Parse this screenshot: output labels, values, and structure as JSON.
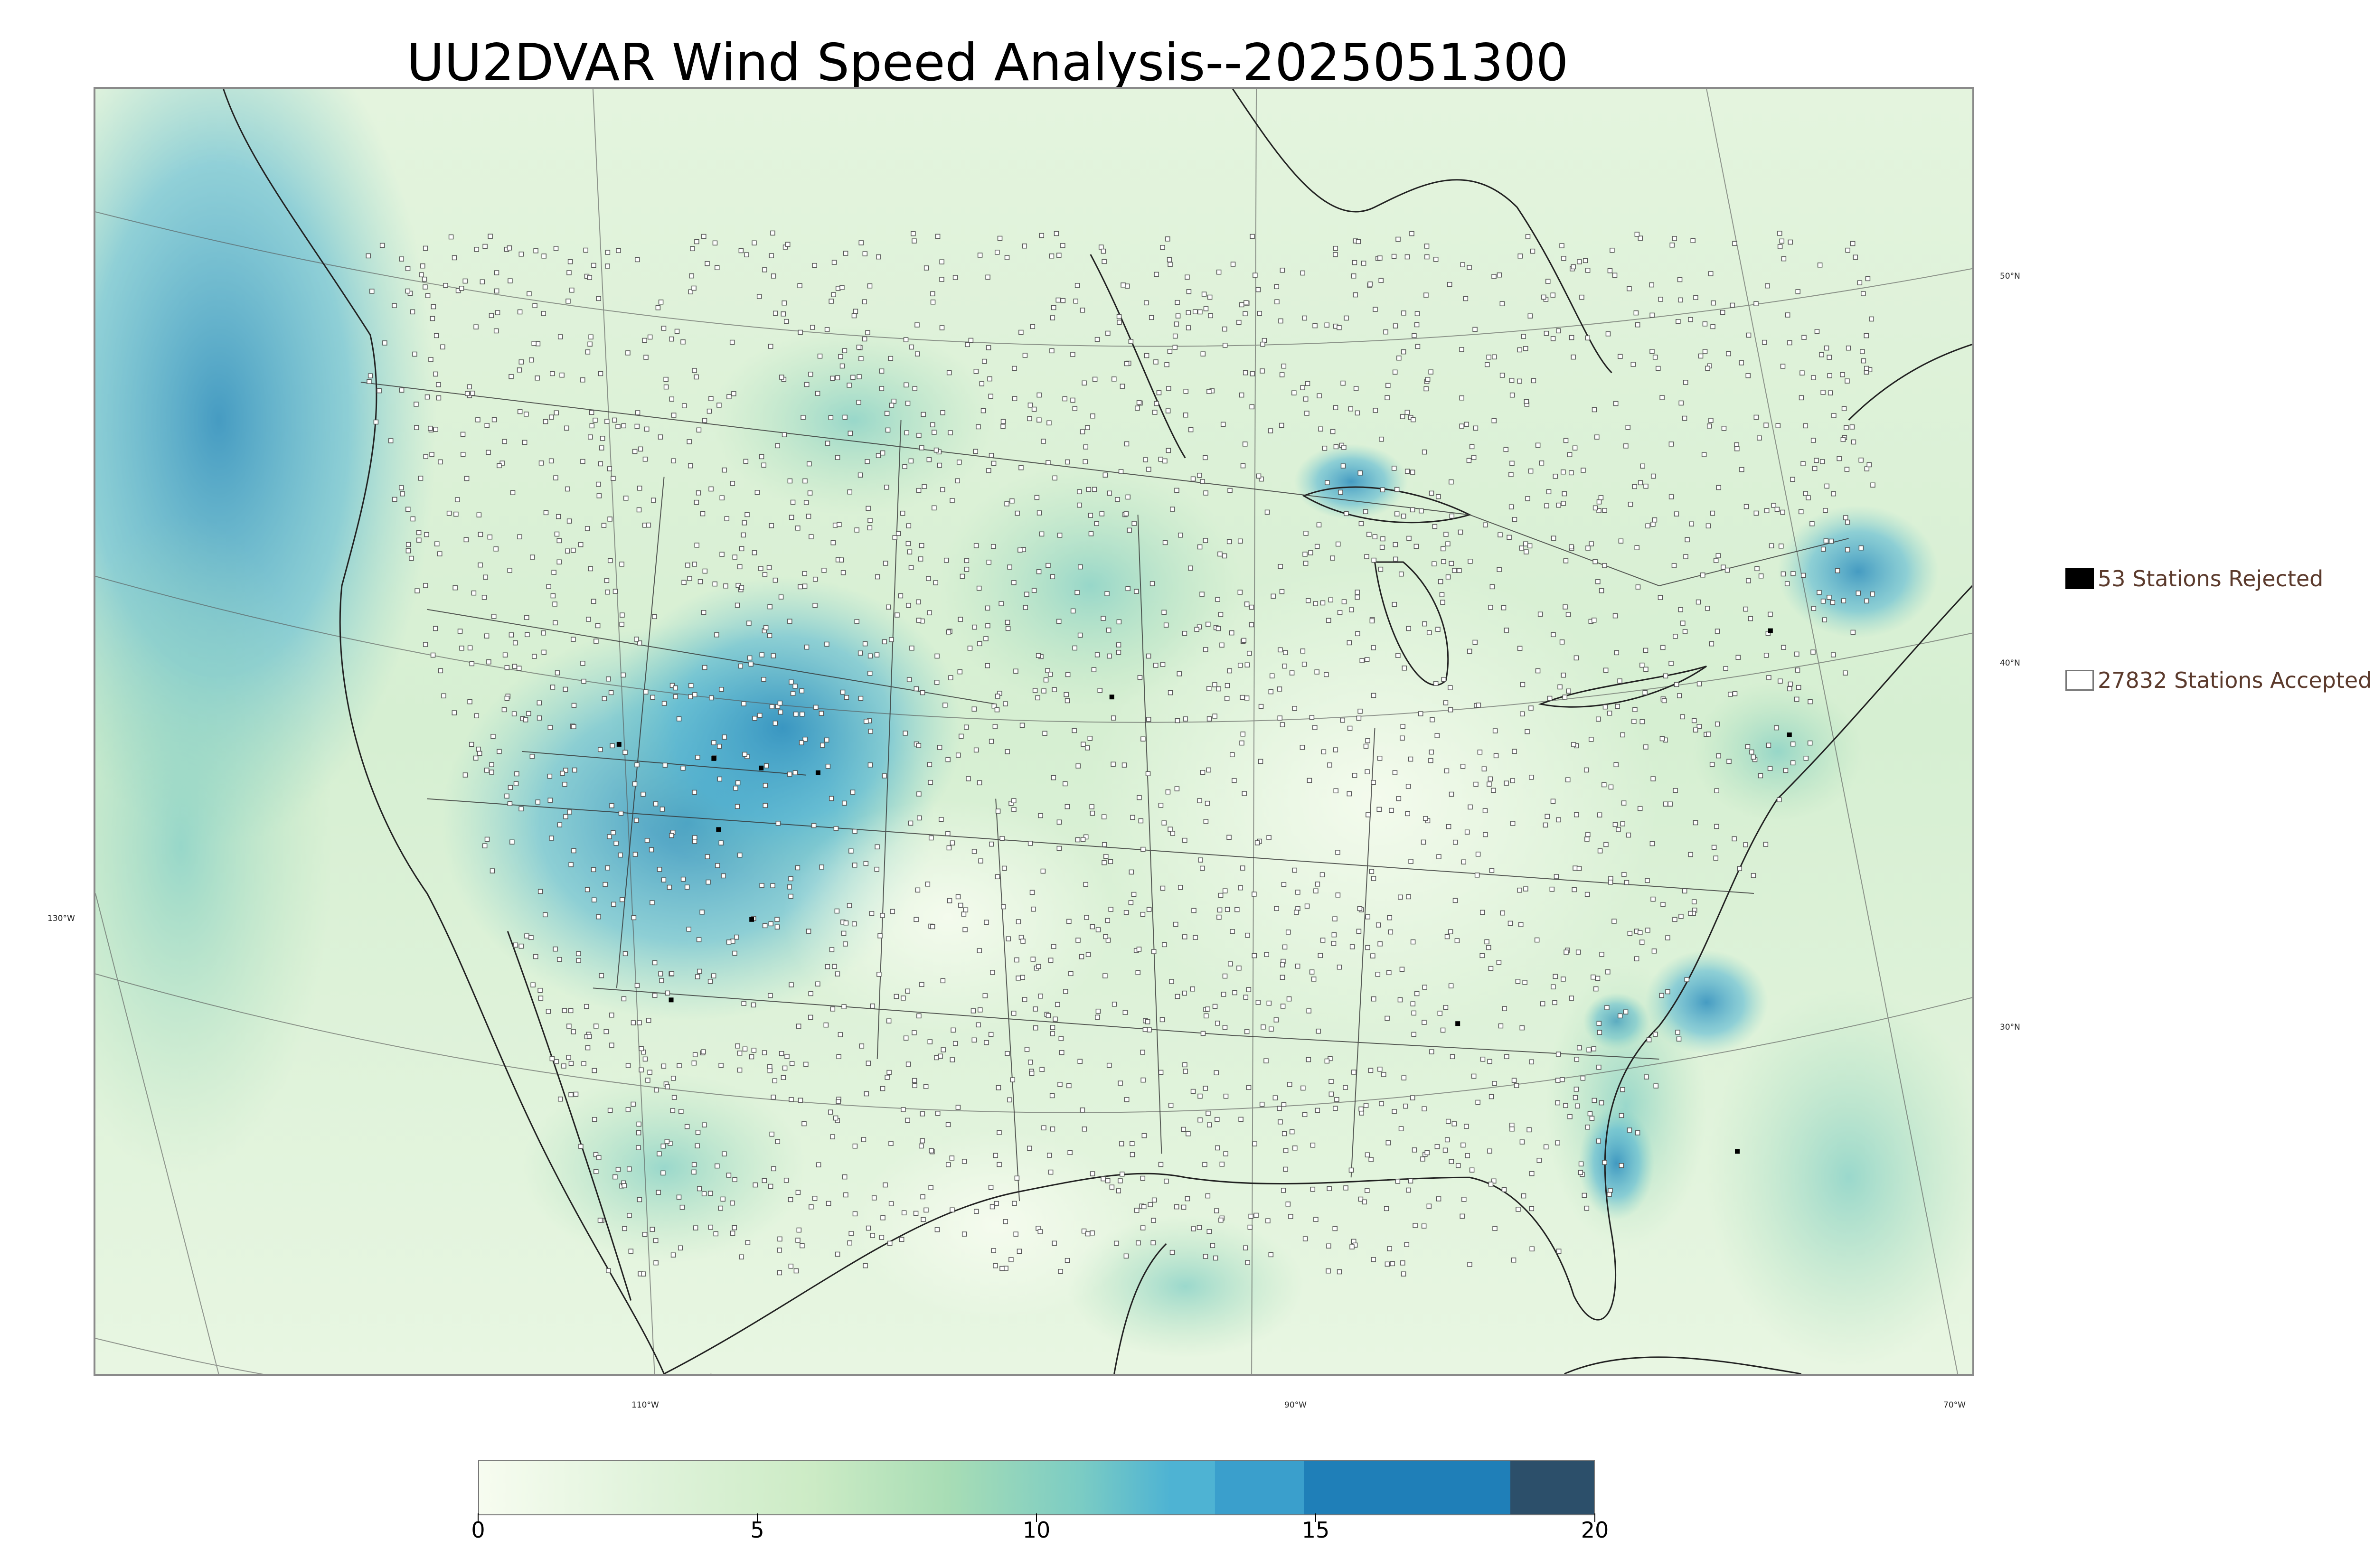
{
  "title": "UU2DVAR Wind Speed Analysis--2025051300",
  "map": {
    "lat_labels": [
      "50°N",
      "40°N",
      "30°N"
    ],
    "lon_labels": [
      "130°W",
      "110°W",
      "90°W",
      "70°W"
    ]
  },
  "legend": {
    "rejected": {
      "label": "53 Stations Rejected",
      "color": "#000000"
    },
    "accepted": {
      "label": "27832 Stations Accepted",
      "color": "#ffffff"
    }
  },
  "colorbar": {
    "min": 0,
    "max": 20,
    "tick_labels": [
      "0",
      "5",
      "10",
      "15",
      "20"
    ],
    "colors": [
      "#f7fcf0",
      "#e0f3db",
      "#ccebc5",
      "#a8ddb5",
      "#7bccc4",
      "#4eb3d3",
      "#2b8cbe",
      "#0868ac",
      "#2c4f6a"
    ]
  }
}
